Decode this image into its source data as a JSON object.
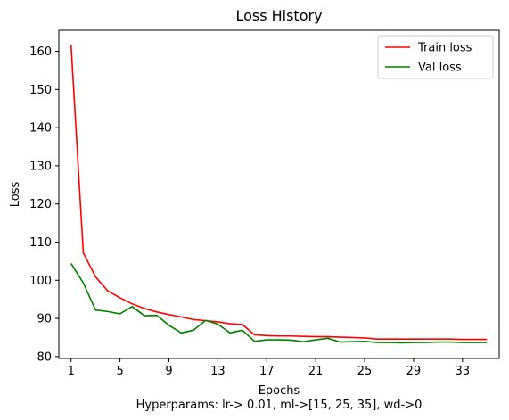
{
  "chart_data": {
    "type": "line",
    "title": "Loss History",
    "xlabel": "Epochs",
    "ylabel": "Loss",
    "caption": "Hyperparams: lr-> 0.01, ml->[15, 25, 35], wd->0",
    "xlim": [
      0,
      36
    ],
    "ylim": [
      79.5,
      165.5
    ],
    "x_ticks": [
      1,
      5,
      9,
      13,
      17,
      21,
      25,
      29,
      33
    ],
    "y_ticks": [
      80,
      90,
      100,
      110,
      120,
      130,
      140,
      150,
      160
    ],
    "grid": false,
    "legend_position": "top-right",
    "x": [
      1,
      2,
      3,
      4,
      5,
      6,
      7,
      8,
      9,
      10,
      11,
      12,
      13,
      14,
      15,
      16,
      17,
      18,
      19,
      20,
      21,
      22,
      23,
      24,
      25,
      26,
      27,
      28,
      29,
      30,
      31,
      32,
      33,
      34,
      35
    ],
    "series": [
      {
        "name": "Train loss",
        "color": "#ff0000",
        "values": [
          161.7,
          107.2,
          100.9,
          97.2,
          95.4,
          93.8,
          92.6,
          91.7,
          91.0,
          90.4,
          89.7,
          89.4,
          89.1,
          88.6,
          88.4,
          85.7,
          85.5,
          85.4,
          85.4,
          85.3,
          85.2,
          85.2,
          85.1,
          85.0,
          84.9,
          84.6,
          84.6,
          84.6,
          84.6,
          84.6,
          84.6,
          84.6,
          84.5,
          84.5,
          84.5
        ]
      },
      {
        "name": "Val loss",
        "color": "#008000",
        "values": [
          104.4,
          99.3,
          92.2,
          91.8,
          91.2,
          93.1,
          90.7,
          90.8,
          88.2,
          86.2,
          86.9,
          89.5,
          88.5,
          86.2,
          86.9,
          84.0,
          84.4,
          84.4,
          84.3,
          83.9,
          84.4,
          84.8,
          83.8,
          83.9,
          84.0,
          83.7,
          83.7,
          83.6,
          83.7,
          83.7,
          83.8,
          83.8,
          83.7,
          83.7,
          83.7
        ]
      }
    ]
  }
}
